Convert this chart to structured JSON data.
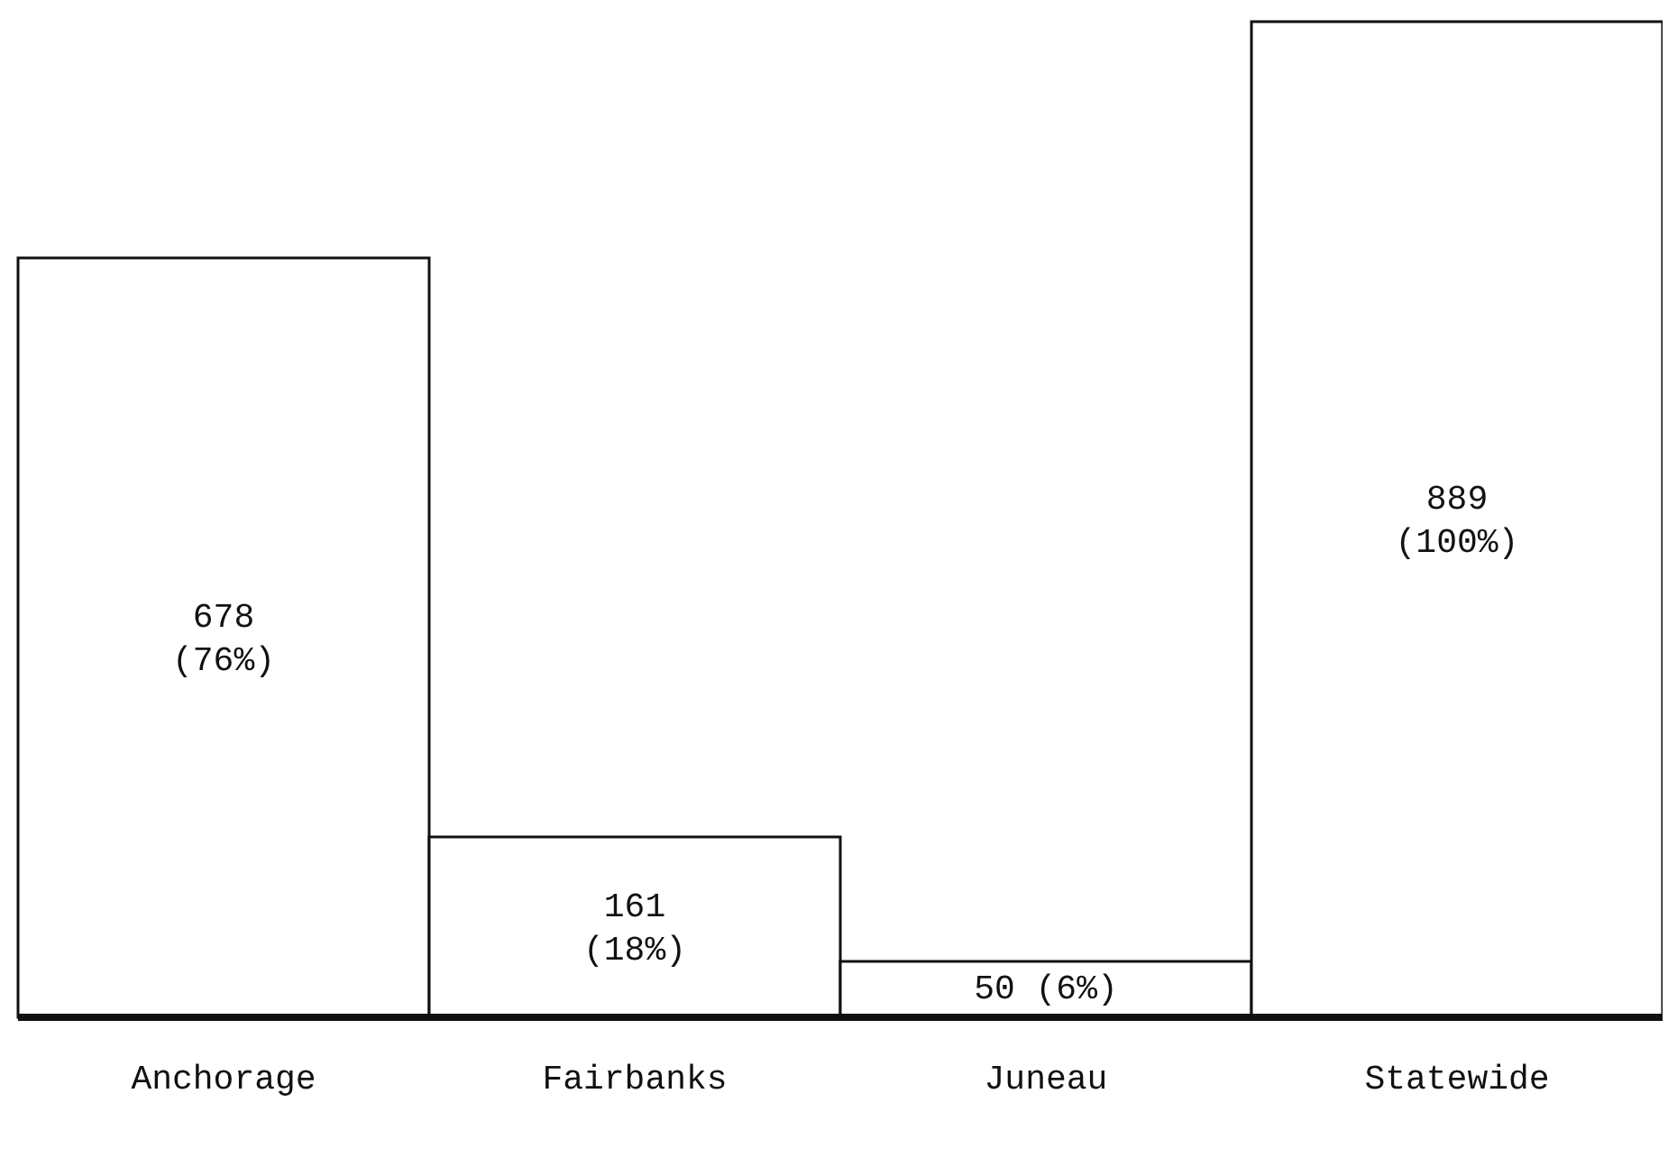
{
  "chart_data": {
    "type": "bar",
    "categories": [
      "Anchorage",
      "Fairbanks",
      "Juneau",
      "Statewide"
    ],
    "values": [
      678,
      161,
      50,
      889
    ],
    "value_labels": [
      "678\n(76%)",
      "161\n(18%)",
      "50 (6%)",
      "889\n(100%)"
    ],
    "color": "#ffffff"
  }
}
